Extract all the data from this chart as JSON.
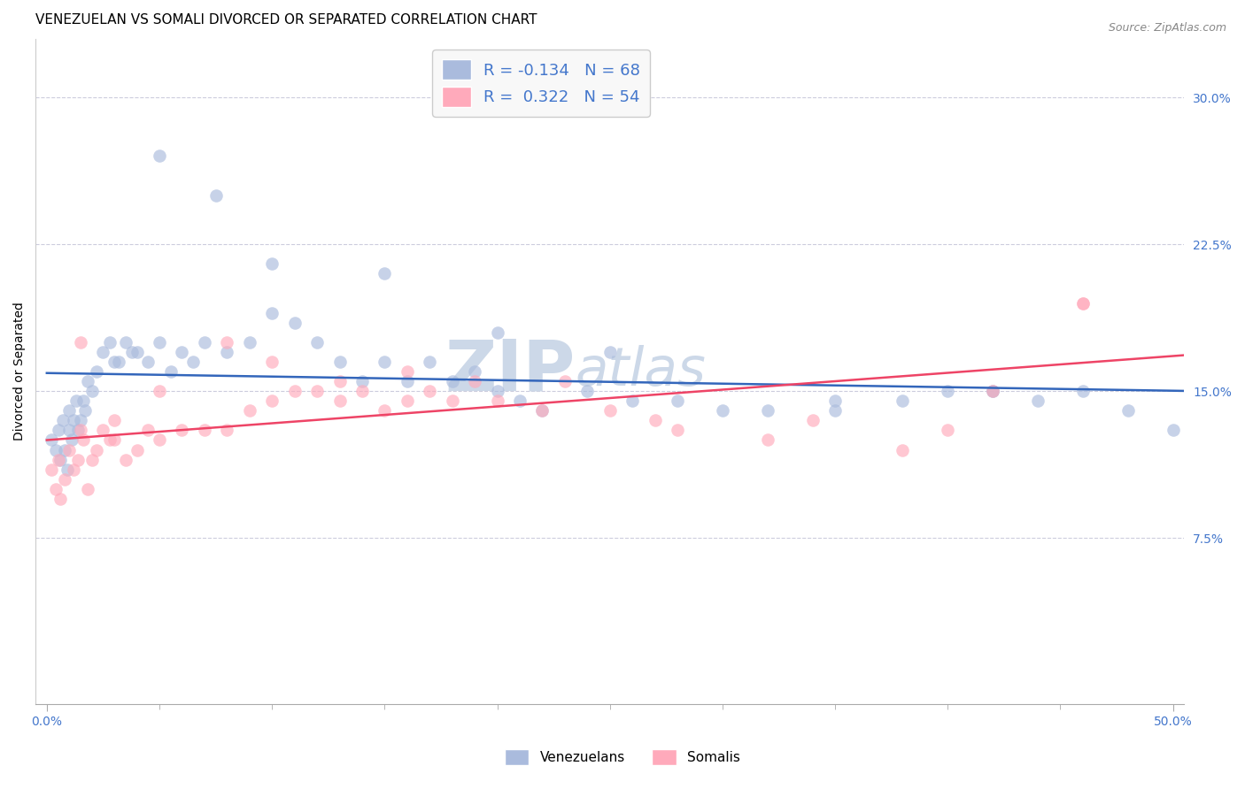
{
  "title": "VENEZUELAN VS SOMALI DIVORCED OR SEPARATED CORRELATION CHART",
  "source": "Source: ZipAtlas.com",
  "ylabel": "Divorced or Separated",
  "right_ytick_labels": [
    "7.5%",
    "15.0%",
    "22.5%",
    "30.0%"
  ],
  "right_ytick_values": [
    0.075,
    0.15,
    0.225,
    0.3
  ],
  "xlim": [
    -0.005,
    0.505
  ],
  "ylim": [
    -0.01,
    0.33
  ],
  "blue_color": "#aabbdd",
  "pink_color": "#ffaabb",
  "blue_line_color": "#3366bb",
  "pink_line_color": "#ee4466",
  "watermark_zip": "ZIP",
  "watermark_atlas": "atlas",
  "watermark_color": "#ccd8e8",
  "background_color": "#ffffff",
  "grid_color": "#ccccdd",
  "title_fontsize": 11,
  "source_fontsize": 9,
  "label_fontsize": 10,
  "tick_fontsize": 10,
  "right_tick_color": "#4477cc",
  "legend_label1": "R = -0.134   N = 68",
  "legend_label2": "R =  0.322   N = 54",
  "bottom_legend_label1": "Venezuelans",
  "bottom_legend_label2": "Somalis",
  "venezuelan_x": [
    0.002,
    0.004,
    0.005,
    0.006,
    0.007,
    0.008,
    0.009,
    0.01,
    0.01,
    0.011,
    0.012,
    0.013,
    0.014,
    0.015,
    0.016,
    0.017,
    0.018,
    0.02,
    0.022,
    0.025,
    0.028,
    0.03,
    0.032,
    0.035,
    0.038,
    0.04,
    0.045,
    0.05,
    0.055,
    0.06,
    0.065,
    0.07,
    0.08,
    0.09,
    0.1,
    0.11,
    0.12,
    0.13,
    0.14,
    0.15,
    0.16,
    0.17,
    0.18,
    0.19,
    0.2,
    0.21,
    0.22,
    0.24,
    0.26,
    0.28,
    0.3,
    0.32,
    0.35,
    0.38,
    0.4,
    0.42,
    0.44,
    0.46,
    0.48,
    0.5,
    0.05,
    0.075,
    0.1,
    0.15,
    0.2,
    0.25,
    0.35,
    0.42
  ],
  "venezuelan_y": [
    0.125,
    0.12,
    0.13,
    0.115,
    0.135,
    0.12,
    0.11,
    0.13,
    0.14,
    0.125,
    0.135,
    0.145,
    0.13,
    0.135,
    0.145,
    0.14,
    0.155,
    0.15,
    0.16,
    0.17,
    0.175,
    0.165,
    0.165,
    0.175,
    0.17,
    0.17,
    0.165,
    0.175,
    0.16,
    0.17,
    0.165,
    0.175,
    0.17,
    0.175,
    0.19,
    0.185,
    0.175,
    0.165,
    0.155,
    0.165,
    0.155,
    0.165,
    0.155,
    0.16,
    0.15,
    0.145,
    0.14,
    0.15,
    0.145,
    0.145,
    0.14,
    0.14,
    0.145,
    0.145,
    0.15,
    0.15,
    0.145,
    0.15,
    0.14,
    0.13,
    0.27,
    0.25,
    0.215,
    0.21,
    0.18,
    0.17,
    0.14,
    0.15
  ],
  "somali_x": [
    0.002,
    0.004,
    0.005,
    0.006,
    0.008,
    0.01,
    0.012,
    0.014,
    0.015,
    0.016,
    0.018,
    0.02,
    0.022,
    0.025,
    0.028,
    0.03,
    0.035,
    0.04,
    0.045,
    0.05,
    0.06,
    0.07,
    0.08,
    0.09,
    0.1,
    0.11,
    0.12,
    0.13,
    0.14,
    0.15,
    0.16,
    0.17,
    0.18,
    0.2,
    0.22,
    0.25,
    0.28,
    0.32,
    0.38,
    0.42,
    0.46,
    0.015,
    0.03,
    0.05,
    0.08,
    0.1,
    0.13,
    0.16,
    0.19,
    0.23,
    0.27,
    0.34,
    0.4,
    0.46
  ],
  "somali_y": [
    0.11,
    0.1,
    0.115,
    0.095,
    0.105,
    0.12,
    0.11,
    0.115,
    0.13,
    0.125,
    0.1,
    0.115,
    0.12,
    0.13,
    0.125,
    0.125,
    0.115,
    0.12,
    0.13,
    0.125,
    0.13,
    0.13,
    0.13,
    0.14,
    0.145,
    0.15,
    0.15,
    0.145,
    0.15,
    0.14,
    0.145,
    0.15,
    0.145,
    0.145,
    0.14,
    0.14,
    0.13,
    0.125,
    0.12,
    0.15,
    0.195,
    0.175,
    0.135,
    0.15,
    0.175,
    0.165,
    0.155,
    0.16,
    0.155,
    0.155,
    0.135,
    0.135,
    0.13,
    0.195
  ]
}
